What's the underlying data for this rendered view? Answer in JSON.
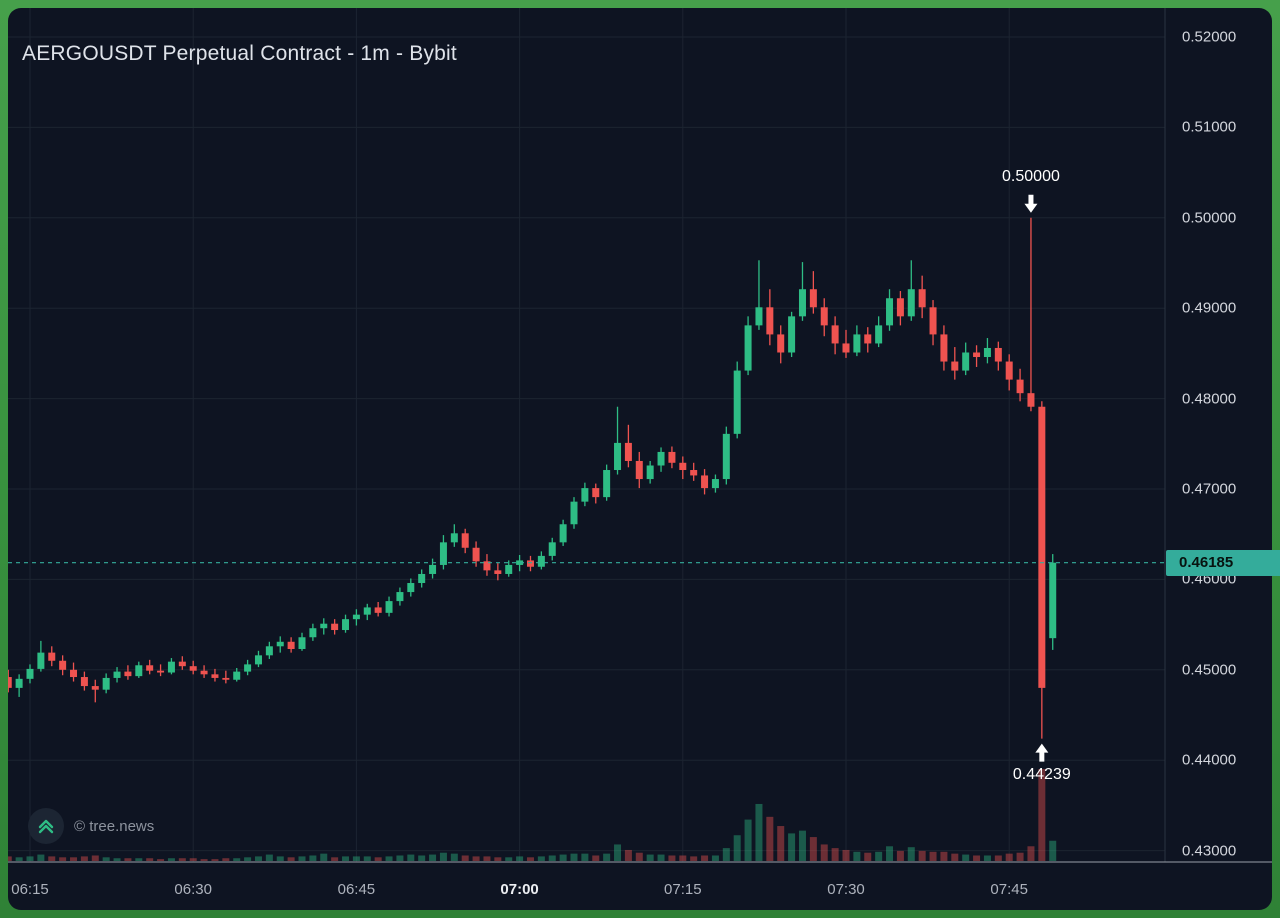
{
  "chart_data": {
    "type": "candlestick",
    "title": "AERGOUSDT Perpetual Contract - 1m - Bybit",
    "current_price": 0.46185,
    "current_price_label": "0.46185",
    "watermark": "© tree.news",
    "colors": {
      "up": "#2ebd85",
      "down": "#ef5350",
      "accent": "#34ac9b",
      "background": "#0e1422",
      "frame_green": "#38913e",
      "grid": "#1c2431",
      "axis_text": "#d3d6dd"
    },
    "y_axis": {
      "min": 0.43,
      "max": 0.52,
      "tick_step": 0.01,
      "ticks": [
        "0.52000",
        "0.51000",
        "0.50000",
        "0.49000",
        "0.48000",
        "0.47000",
        "0.46000",
        "0.45000",
        "0.44000",
        "0.43000"
      ]
    },
    "x_axis": {
      "ticks": [
        {
          "label": "06:15",
          "bold": false
        },
        {
          "label": "06:30",
          "bold": false
        },
        {
          "label": "06:45",
          "bold": false
        },
        {
          "label": "07:00",
          "bold": true
        },
        {
          "label": "07:15",
          "bold": false
        },
        {
          "label": "07:30",
          "bold": false
        },
        {
          "label": "07:45",
          "bold": false
        }
      ]
    },
    "annotations": [
      {
        "text": "0.50000",
        "time": "07:47",
        "price": 0.5,
        "direction": "down"
      },
      {
        "text": "0.44239",
        "time": "07:48",
        "price": 0.44239,
        "direction": "up"
      }
    ],
    "columns": [
      "time",
      "open",
      "high",
      "low",
      "close",
      "volume"
    ],
    "candles": [
      [
        "06:13",
        0.4492,
        0.45,
        0.4475,
        0.448,
        5
      ],
      [
        "06:14",
        0.448,
        0.4495,
        0.447,
        0.449,
        4
      ],
      [
        "06:15",
        0.449,
        0.4506,
        0.4485,
        0.4501,
        5
      ],
      [
        "06:16",
        0.4501,
        0.4532,
        0.4498,
        0.4519,
        7
      ],
      [
        "06:17",
        0.4519,
        0.4526,
        0.4504,
        0.451,
        5
      ],
      [
        "06:18",
        0.451,
        0.4516,
        0.4494,
        0.45,
        4
      ],
      [
        "06:19",
        0.45,
        0.4508,
        0.4487,
        0.4492,
        4
      ],
      [
        "06:20",
        0.4492,
        0.4498,
        0.4477,
        0.4482,
        5
      ],
      [
        "06:21",
        0.4482,
        0.4489,
        0.4464,
        0.4478,
        6
      ],
      [
        "06:22",
        0.4478,
        0.4496,
        0.4474,
        0.4491,
        4
      ],
      [
        "06:23",
        0.4491,
        0.4503,
        0.4486,
        0.4498,
        3
      ],
      [
        "06:24",
        0.4498,
        0.4505,
        0.4489,
        0.4493,
        3
      ],
      [
        "06:25",
        0.4493,
        0.4509,
        0.4491,
        0.4505,
        3
      ],
      [
        "06:26",
        0.4505,
        0.4511,
        0.4495,
        0.4499,
        3
      ],
      [
        "06:27",
        0.4499,
        0.4506,
        0.4493,
        0.4497,
        2
      ],
      [
        "06:28",
        0.4497,
        0.4513,
        0.4495,
        0.4509,
        3
      ],
      [
        "06:29",
        0.4509,
        0.4515,
        0.45,
        0.4504,
        3
      ],
      [
        "06:30",
        0.4504,
        0.451,
        0.4495,
        0.4499,
        3
      ],
      [
        "06:31",
        0.4499,
        0.4505,
        0.4491,
        0.4495,
        2
      ],
      [
        "06:32",
        0.4495,
        0.4501,
        0.4487,
        0.4491,
        2
      ],
      [
        "06:33",
        0.4491,
        0.4499,
        0.4485,
        0.4489,
        3
      ],
      [
        "06:34",
        0.4489,
        0.4502,
        0.4487,
        0.4498,
        3
      ],
      [
        "06:35",
        0.4498,
        0.4511,
        0.4494,
        0.4506,
        4
      ],
      [
        "06:36",
        0.4506,
        0.4521,
        0.4503,
        0.4516,
        5
      ],
      [
        "06:37",
        0.4516,
        0.4531,
        0.4512,
        0.4526,
        7
      ],
      [
        "06:38",
        0.4526,
        0.4537,
        0.4519,
        0.4531,
        5
      ],
      [
        "06:39",
        0.4531,
        0.4536,
        0.4519,
        0.4523,
        4
      ],
      [
        "06:40",
        0.4523,
        0.4541,
        0.4521,
        0.4536,
        5
      ],
      [
        "06:41",
        0.4536,
        0.4551,
        0.4532,
        0.4546,
        6
      ],
      [
        "06:42",
        0.4546,
        0.4557,
        0.4539,
        0.4551,
        8
      ],
      [
        "06:43",
        0.4551,
        0.4556,
        0.4539,
        0.4544,
        4
      ],
      [
        "06:44",
        0.4544,
        0.4561,
        0.4541,
        0.4556,
        5
      ],
      [
        "06:45",
        0.4556,
        0.4567,
        0.4549,
        0.4561,
        5
      ],
      [
        "06:46",
        0.4561,
        0.4573,
        0.4555,
        0.4569,
        5
      ],
      [
        "06:47",
        0.4569,
        0.4575,
        0.4559,
        0.4563,
        4
      ],
      [
        "06:48",
        0.4563,
        0.4581,
        0.4559,
        0.4576,
        5
      ],
      [
        "06:49",
        0.4576,
        0.4591,
        0.4571,
        0.4586,
        6
      ],
      [
        "06:50",
        0.4586,
        0.4601,
        0.4581,
        0.4596,
        7
      ],
      [
        "06:51",
        0.4596,
        0.4611,
        0.4591,
        0.4606,
        6
      ],
      [
        "06:52",
        0.4606,
        0.4623,
        0.4601,
        0.4616,
        7
      ],
      [
        "06:53",
        0.4616,
        0.4649,
        0.4611,
        0.4641,
        9
      ],
      [
        "06:54",
        0.4641,
        0.4661,
        0.4636,
        0.4651,
        8
      ],
      [
        "06:55",
        0.4651,
        0.4656,
        0.4629,
        0.4635,
        6
      ],
      [
        "06:56",
        0.4635,
        0.4642,
        0.4614,
        0.462,
        5
      ],
      [
        "06:57",
        0.462,
        0.4628,
        0.4604,
        0.461,
        5
      ],
      [
        "06:58",
        0.461,
        0.4618,
        0.4599,
        0.4606,
        4
      ],
      [
        "06:59",
        0.4606,
        0.4621,
        0.4603,
        0.4616,
        4
      ],
      [
        "07:00",
        0.4616,
        0.4627,
        0.4609,
        0.4621,
        5
      ],
      [
        "07:01",
        0.4621,
        0.4626,
        0.4609,
        0.4614,
        4
      ],
      [
        "07:02",
        0.4614,
        0.4631,
        0.4611,
        0.4626,
        5
      ],
      [
        "07:03",
        0.4626,
        0.4646,
        0.4621,
        0.4641,
        6
      ],
      [
        "07:04",
        0.4641,
        0.4666,
        0.4637,
        0.4661,
        7
      ],
      [
        "07:05",
        0.4661,
        0.4691,
        0.4656,
        0.4686,
        8
      ],
      [
        "07:06",
        0.4686,
        0.4707,
        0.4681,
        0.4701,
        8
      ],
      [
        "07:07",
        0.4701,
        0.4706,
        0.4684,
        0.4691,
        6
      ],
      [
        "07:08",
        0.4691,
        0.4727,
        0.4687,
        0.4721,
        8
      ],
      [
        "07:09",
        0.4721,
        0.4791,
        0.4716,
        0.4751,
        18
      ],
      [
        "07:10",
        0.4751,
        0.4771,
        0.4724,
        0.4731,
        12
      ],
      [
        "07:11",
        0.4731,
        0.4741,
        0.4701,
        0.4711,
        9
      ],
      [
        "07:12",
        0.4711,
        0.4731,
        0.4706,
        0.4726,
        7
      ],
      [
        "07:13",
        0.4726,
        0.4746,
        0.4719,
        0.4741,
        7
      ],
      [
        "07:14",
        0.4741,
        0.4747,
        0.4723,
        0.4729,
        6
      ],
      [
        "07:15",
        0.4729,
        0.4736,
        0.4711,
        0.4721,
        6
      ],
      [
        "07:16",
        0.4721,
        0.4729,
        0.4709,
        0.4715,
        5
      ],
      [
        "07:17",
        0.4715,
        0.4722,
        0.4694,
        0.4701,
        6
      ],
      [
        "07:18",
        0.4701,
        0.4716,
        0.4696,
        0.4711,
        6
      ],
      [
        "07:19",
        0.4711,
        0.4769,
        0.4705,
        0.4761,
        14
      ],
      [
        "07:20",
        0.4761,
        0.4841,
        0.4756,
        0.4831,
        28
      ],
      [
        "07:21",
        0.4831,
        0.4891,
        0.4826,
        0.4881,
        45
      ],
      [
        "07:22",
        0.4881,
        0.4953,
        0.4876,
        0.4901,
        62
      ],
      [
        "07:23",
        0.4901,
        0.4921,
        0.4859,
        0.4871,
        48
      ],
      [
        "07:24",
        0.4871,
        0.4881,
        0.4839,
        0.4851,
        38
      ],
      [
        "07:25",
        0.4851,
        0.4896,
        0.4846,
        0.4891,
        30
      ],
      [
        "07:26",
        0.4891,
        0.4951,
        0.4886,
        0.4921,
        33
      ],
      [
        "07:27",
        0.4921,
        0.4941,
        0.4894,
        0.4901,
        26
      ],
      [
        "07:28",
        0.4901,
        0.4911,
        0.4869,
        0.4881,
        18
      ],
      [
        "07:29",
        0.4881,
        0.4891,
        0.4849,
        0.4861,
        14
      ],
      [
        "07:30",
        0.4861,
        0.4876,
        0.4845,
        0.4851,
        12
      ],
      [
        "07:31",
        0.4851,
        0.4881,
        0.4847,
        0.4871,
        10
      ],
      [
        "07:32",
        0.4871,
        0.4879,
        0.4851,
        0.4861,
        9
      ],
      [
        "07:33",
        0.4861,
        0.4891,
        0.4857,
        0.4881,
        10
      ],
      [
        "07:34",
        0.4881,
        0.4921,
        0.4875,
        0.4911,
        16
      ],
      [
        "07:35",
        0.4911,
        0.4919,
        0.4881,
        0.4891,
        11
      ],
      [
        "07:36",
        0.4891,
        0.4953,
        0.4886,
        0.4921,
        15
      ],
      [
        "07:37",
        0.4921,
        0.4936,
        0.4889,
        0.4901,
        11
      ],
      [
        "07:38",
        0.4901,
        0.4909,
        0.4859,
        0.4871,
        10
      ],
      [
        "07:39",
        0.4871,
        0.4881,
        0.4831,
        0.4841,
        10
      ],
      [
        "07:40",
        0.4841,
        0.4857,
        0.4821,
        0.4831,
        8
      ],
      [
        "07:41",
        0.4831,
        0.4862,
        0.4826,
        0.4851,
        7
      ],
      [
        "07:42",
        0.4851,
        0.4859,
        0.4835,
        0.4846,
        6
      ],
      [
        "07:43",
        0.4846,
        0.4867,
        0.4839,
        0.4856,
        6
      ],
      [
        "07:44",
        0.4856,
        0.4863,
        0.4831,
        0.4841,
        6
      ],
      [
        "07:45",
        0.4841,
        0.4849,
        0.4809,
        0.4821,
        8
      ],
      [
        "07:46",
        0.4821,
        0.4833,
        0.4797,
        0.4806,
        9
      ],
      [
        "07:47",
        0.4806,
        0.5,
        0.4786,
        0.4791,
        16
      ],
      [
        "07:48",
        0.4791,
        0.4797,
        0.44239,
        0.448,
        100
      ],
      [
        "07:49",
        0.4535,
        0.4628,
        0.4522,
        0.46185,
        22
      ]
    ]
  }
}
